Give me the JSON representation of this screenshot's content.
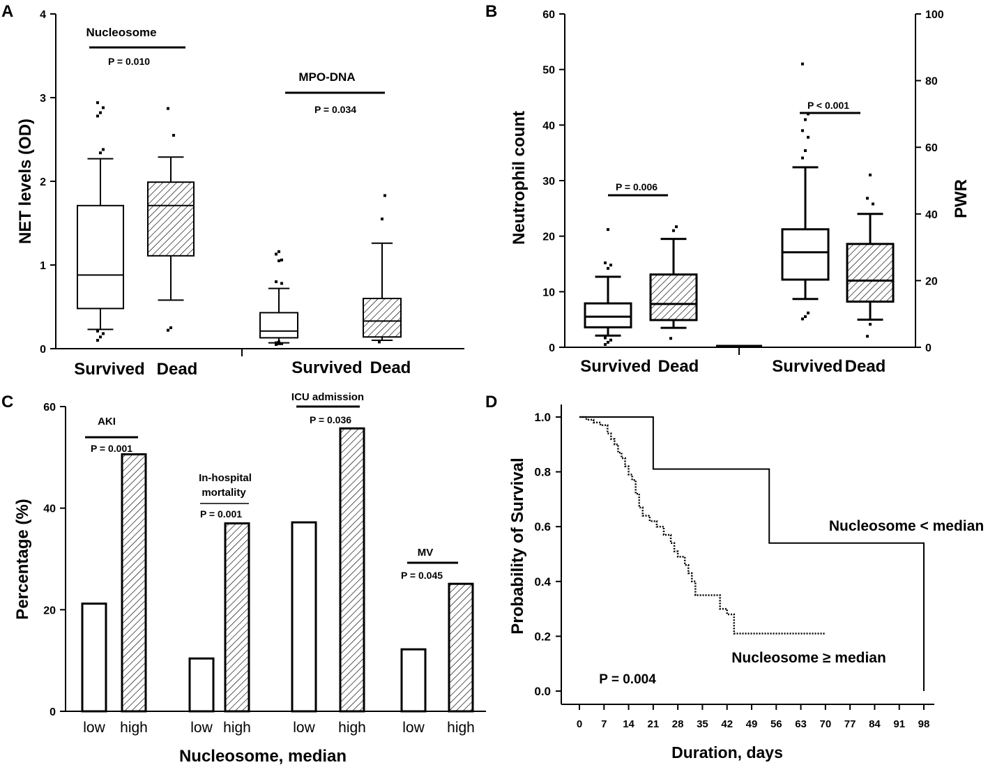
{
  "chart_data": [
    {
      "panel": "A",
      "type": "box",
      "ylabel": "NET levels (OD)",
      "ylim": [
        0,
        4
      ],
      "yticks": [
        0,
        1,
        2,
        3,
        4
      ],
      "xlabels": [
        "Survived",
        "Dead",
        "Survived",
        "Dead"
      ],
      "groups": [
        {
          "name": "Nucleosome",
          "p": "P = 0.010",
          "boxes": [
            {
              "label": "Survived",
              "hatched": false,
              "min": 0.23,
              "q1": 0.48,
              "median": 0.88,
              "q3": 1.71,
              "max": 2.27,
              "outliers": [
                0.1,
                0.14,
                0.18,
                0.21,
                2.34,
                2.38,
                2.78,
                2.82,
                2.88,
                2.94
              ]
            },
            {
              "label": "Dead",
              "hatched": true,
              "min": 0.58,
              "q1": 1.11,
              "median": 1.71,
              "q3": 1.99,
              "max": 2.29,
              "outliers": [
                0.22,
                0.25,
                2.55,
                2.87
              ]
            }
          ]
        },
        {
          "name": "MPO-DNA",
          "p": "P = 0.034",
          "boxes": [
            {
              "label": "Survived",
              "hatched": false,
              "min": 0.07,
              "q1": 0.13,
              "median": 0.21,
              "q3": 0.43,
              "max": 0.72,
              "outliers": [
                0.05,
                0.06,
                0.06,
                0.07,
                0.08,
                0.78,
                0.8,
                1.05,
                1.06,
                1.13,
                1.16
              ]
            },
            {
              "label": "Dead",
              "hatched": true,
              "min": 0.1,
              "q1": 0.14,
              "median": 0.33,
              "q3": 0.6,
              "max": 1.26,
              "outliers": [
                0.08,
                1.55,
                1.83
              ]
            }
          ]
        }
      ]
    },
    {
      "panel": "B",
      "type": "box",
      "ylabel": "Neutrophil count",
      "y2label": "PWR",
      "ylim": [
        0,
        60
      ],
      "yticks": [
        0,
        10,
        20,
        30,
        40,
        50,
        60
      ],
      "y2lim": [
        0,
        100
      ],
      "y2ticks": [
        0,
        20,
        40,
        60,
        80,
        100
      ],
      "xlabels": [
        "Survived",
        "Dead",
        "Survived",
        "Dead"
      ],
      "groups": [
        {
          "name": "Neutrophil count",
          "axis": "left",
          "p": "P = 0.006",
          "boxes": [
            {
              "label": "Survived",
              "hatched": false,
              "min": 2.1,
              "q1": 3.6,
              "median": 5.5,
              "q3": 7.9,
              "max": 12.7,
              "outliers": [
                0.5,
                0.9,
                1.3,
                1.7,
                14.2,
                14.8,
                15.2,
                21.2
              ]
            },
            {
              "label": "Dead",
              "hatched": true,
              "min": 3.5,
              "q1": 4.9,
              "median": 7.8,
              "q3": 13.1,
              "max": 19.5,
              "outliers": [
                1.6,
                21.0,
                21.7
              ]
            }
          ]
        },
        {
          "name": "PWR",
          "axis": "right",
          "p": "P < 0.001",
          "boxes": [
            {
              "label": "Survived",
              "hatched": false,
              "min": 14.5,
              "q1": 20.3,
              "median": 28.5,
              "q3": 35.4,
              "max": 54.0,
              "outliers": [
                8.5,
                9.2,
                10.3,
                56.8,
                59.0,
                63.0,
                65.0,
                68.3,
                70.0,
                85.0
              ]
            },
            {
              "label": "Dead",
              "hatched": true,
              "min": 8.3,
              "q1": 13.7,
              "median": 20.0,
              "q3": 31.0,
              "max": 40.0,
              "outliers": [
                3.3,
                6.9,
                43.0,
                44.7,
                51.7
              ]
            }
          ]
        }
      ]
    },
    {
      "panel": "C",
      "type": "bar",
      "ylabel": "Percentage (%)",
      "xlabel": "Nucleosome, median",
      "ylim": [
        0,
        60
      ],
      "yticks": [
        0,
        20,
        40,
        60
      ],
      "series_names": [
        "low",
        "high"
      ],
      "groups": [
        {
          "name": "AKI",
          "p": "P = 0.001",
          "low": 21.2,
          "high": 50.6
        },
        {
          "name": "In-hospital mortality",
          "p": "P = 0.001",
          "low": 10.4,
          "high": 37.0
        },
        {
          "name": "ICU admission",
          "p": "P = 0.036",
          "low": 37.2,
          "high": 55.7
        },
        {
          "name": "MV",
          "p": "P = 0.045",
          "low": 12.2,
          "high": 25.1
        }
      ]
    },
    {
      "panel": "D",
      "type": "line",
      "ylabel": "Probability of Survival",
      "xlabel": "Duration, days",
      "xlim": [
        0,
        98
      ],
      "xticks": [
        0,
        7,
        14,
        21,
        28,
        35,
        42,
        49,
        56,
        63,
        70,
        77,
        84,
        91,
        98
      ],
      "ylim": [
        0,
        1
      ],
      "yticks": [
        "0.0",
        "0.2",
        "0.4",
        "0.6",
        "0.8",
        "1.0"
      ],
      "p": "P = 0.004",
      "series": [
        {
          "name": "Nucleosome < median",
          "style": "solid",
          "x": [
            0,
            21,
            21,
            54,
            54,
            98,
            98
          ],
          "y": [
            1.0,
            1.0,
            0.81,
            0.81,
            0.54,
            0.54,
            0.0
          ]
        },
        {
          "name": "Nucleosome ≥ median",
          "style": "dotted",
          "x": [
            0,
            2,
            2,
            4,
            4,
            6,
            6,
            8,
            8,
            9,
            9,
            10,
            10,
            11,
            11,
            12,
            12,
            13,
            13,
            14,
            14,
            15,
            15,
            16,
            16,
            17,
            17,
            18,
            18,
            20,
            20,
            22,
            22,
            24,
            24,
            26,
            26,
            27,
            27,
            28,
            28,
            30,
            30,
            31,
            31,
            32,
            32,
            33,
            33,
            38,
            38,
            40,
            40,
            42,
            42,
            44,
            44,
            70
          ],
          "y": [
            1.0,
            1.0,
            0.99,
            0.99,
            0.98,
            0.98,
            0.97,
            0.97,
            0.94,
            0.94,
            0.92,
            0.92,
            0.9,
            0.9,
            0.87,
            0.87,
            0.85,
            0.85,
            0.82,
            0.82,
            0.79,
            0.79,
            0.77,
            0.77,
            0.72,
            0.72,
            0.67,
            0.67,
            0.64,
            0.64,
            0.62,
            0.62,
            0.6,
            0.6,
            0.57,
            0.57,
            0.54,
            0.54,
            0.51,
            0.51,
            0.49,
            0.49,
            0.46,
            0.46,
            0.43,
            0.43,
            0.4,
            0.4,
            0.35,
            0.35,
            0.35,
            0.35,
            0.3,
            0.3,
            0.28,
            0.28,
            0.21,
            0.21
          ]
        }
      ]
    }
  ]
}
